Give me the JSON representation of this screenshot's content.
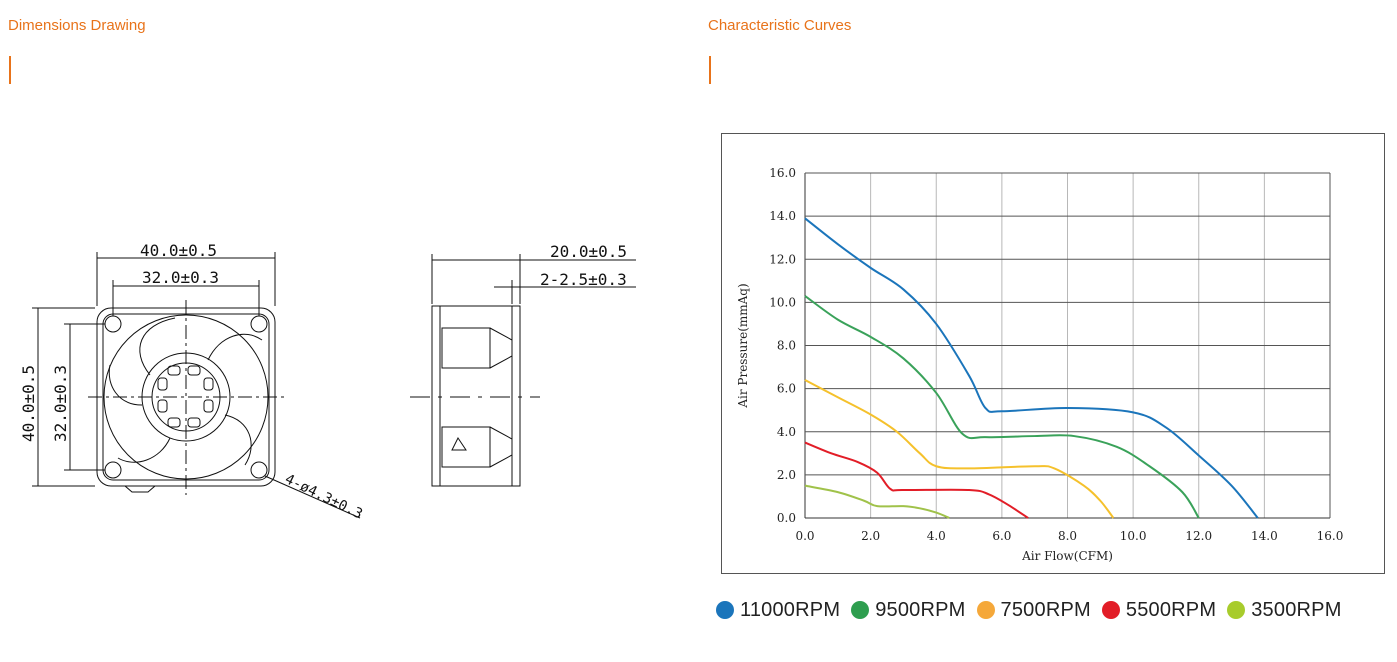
{
  "left_section": {
    "title": "Dimensions Drawing"
  },
  "right_section": {
    "title": "Characteristic Curves"
  },
  "drawing": {
    "front_width_outer": "40.0±0.5",
    "front_width_inner": "32.0±0.3",
    "front_height_outer": "40.0±0.5",
    "front_height_inner": "32.0±0.3",
    "hole_spec": "4-ø4.3±0.3",
    "side_depth": "20.0±0.5",
    "side_flange": "2-2.5±0.3"
  },
  "chart_data": {
    "type": "line",
    "xlabel": "Air Flow(CFM)",
    "ylabel": "Air Pressure(mmAq)",
    "xlim": [
      0,
      16
    ],
    "ylim": [
      0,
      16
    ],
    "x_ticks": [
      "0.0",
      "2.0",
      "4.0",
      "6.0",
      "8.0",
      "10.0",
      "12.0",
      "14.0",
      "16.0"
    ],
    "y_ticks": [
      "0.0",
      "2.0",
      "4.0",
      "6.0",
      "8.0",
      "10.0",
      "12.0",
      "14.0",
      "16.0"
    ],
    "grid": true,
    "legend_position": "bottom",
    "series": [
      {
        "name": "11000RPM",
        "color": "#1b75bb",
        "points": [
          [
            0,
            13.9
          ],
          [
            1,
            12.7
          ],
          [
            2,
            11.6
          ],
          [
            3,
            10.6
          ],
          [
            4,
            9.0
          ],
          [
            5,
            6.6
          ],
          [
            5.5,
            5.1
          ],
          [
            6,
            4.95
          ],
          [
            8,
            5.1
          ],
          [
            10,
            4.9
          ],
          [
            11,
            4.2
          ],
          [
            12,
            2.9
          ],
          [
            13,
            1.5
          ],
          [
            13.8,
            0
          ]
        ]
      },
      {
        "name": "9500RPM",
        "color": "#3aa25a",
        "points": [
          [
            0,
            10.3
          ],
          [
            1,
            9.2
          ],
          [
            2,
            8.4
          ],
          [
            3,
            7.4
          ],
          [
            4,
            5.8
          ],
          [
            4.8,
            3.9
          ],
          [
            5.5,
            3.75
          ],
          [
            7,
            3.8
          ],
          [
            8.2,
            3.8
          ],
          [
            9.5,
            3.3
          ],
          [
            10.5,
            2.4
          ],
          [
            11.5,
            1.2
          ],
          [
            12,
            0
          ]
        ]
      },
      {
        "name": "7500RPM",
        "color": "#f5c12c",
        "points": [
          [
            0,
            6.4
          ],
          [
            1,
            5.6
          ],
          [
            2,
            4.8
          ],
          [
            2.8,
            4.0
          ],
          [
            3.5,
            3.0
          ],
          [
            4,
            2.4
          ],
          [
            5,
            2.3
          ],
          [
            7,
            2.4
          ],
          [
            7.6,
            2.3
          ],
          [
            8.5,
            1.5
          ],
          [
            9,
            0.8
          ],
          [
            9.4,
            0
          ]
        ]
      },
      {
        "name": "5500RPM",
        "color": "#e21d27",
        "points": [
          [
            0,
            3.5
          ],
          [
            0.8,
            3.0
          ],
          [
            1.6,
            2.6
          ],
          [
            2.2,
            2.1
          ],
          [
            2.6,
            1.35
          ],
          [
            3,
            1.3
          ],
          [
            5,
            1.3
          ],
          [
            5.6,
            1.1
          ],
          [
            6.2,
            0.6
          ],
          [
            6.8,
            0
          ]
        ]
      },
      {
        "name": "3500RPM",
        "color": "#a0c24a",
        "points": [
          [
            0,
            1.5
          ],
          [
            1,
            1.2
          ],
          [
            1.8,
            0.8
          ],
          [
            2.2,
            0.55
          ],
          [
            3,
            0.55
          ],
          [
            3.5,
            0.45
          ],
          [
            4,
            0.25
          ],
          [
            4.4,
            0
          ]
        ]
      }
    ]
  },
  "legend": [
    {
      "label": "11000RPM",
      "color": "#1b75bb"
    },
    {
      "label": "9500RPM",
      "color": "#2e9e4f"
    },
    {
      "label": "7500RPM",
      "color": "#f5a83a"
    },
    {
      "label": "5500RPM",
      "color": "#e21d27"
    },
    {
      "label": "3500RPM",
      "color": "#a8cc2c"
    }
  ]
}
